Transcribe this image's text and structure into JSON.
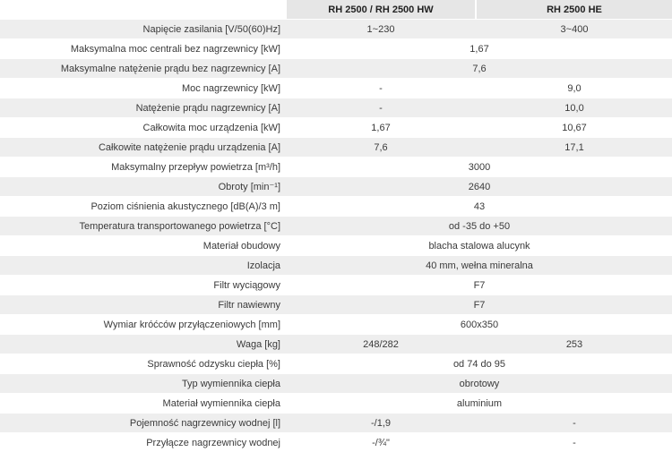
{
  "header": {
    "col1": "RH 2500 / RH 2500 HW",
    "col2": "RH 2500 HE"
  },
  "rows": [
    {
      "label": "Napięcie zasilania [V/50(60)Hz]",
      "v1": "1~230",
      "v2": "3~400"
    },
    {
      "label": "Maksymalna moc centrali bez nagrzewnicy [kW]",
      "span": "1,67"
    },
    {
      "label": "Maksymalne natężenie prądu bez nagrzewnicy [A]",
      "span": "7,6"
    },
    {
      "label": "Moc nagrzewnicy [kW]",
      "v1": "-",
      "v2": "9,0"
    },
    {
      "label": "Natężenie prądu nagrzewnicy [A]",
      "v1": "-",
      "v2": "10,0"
    },
    {
      "label": "Całkowita moc urządzenia [kW]",
      "v1": "1,67",
      "v2": "10,67"
    },
    {
      "label": "Całkowite natężenie prądu urządzenia [A]",
      "v1": "7,6",
      "v2": "17,1"
    },
    {
      "label": "Maksymalny przepływ powietrza [m³/h]",
      "span": "3000"
    },
    {
      "label": "Obroty [min⁻¹]",
      "span": "2640"
    },
    {
      "label": "Poziom ciśnienia akustycznego  [dB(A)/3 m]",
      "span": "43"
    },
    {
      "label": "Temperatura transportowanego powietrza [°C]",
      "span": "od -35 do +50"
    },
    {
      "label": "Materiał obudowy",
      "span": "blacha stalowa alucynk"
    },
    {
      "label": "Izolacja",
      "span": "40 mm, wełna mineralna"
    },
    {
      "label": "Filtr wyciągowy",
      "span": "F7"
    },
    {
      "label": "Filtr nawiewny",
      "span": "F7"
    },
    {
      "label": "Wymiar króćców przyłączeniowych [mm]",
      "span": "600x350"
    },
    {
      "label": "Waga [kg]",
      "v1": "248/282",
      "v2": "253"
    },
    {
      "label": "Sprawność odzysku ciepła [%]",
      "span": "od 74 do 95"
    },
    {
      "label": "Typ wymiennika ciepła",
      "span": "obrotowy"
    },
    {
      "label": "Materiał wymiennika ciepła",
      "span": "aluminium"
    },
    {
      "label": "Pojemność nagrzewnicy wodnej [l]",
      "v1": "-/1,9",
      "v2": "-"
    },
    {
      "label": "Przyłącze nagrzewnicy wodnej",
      "v1": "-/¾\"",
      "v2": "-"
    }
  ]
}
